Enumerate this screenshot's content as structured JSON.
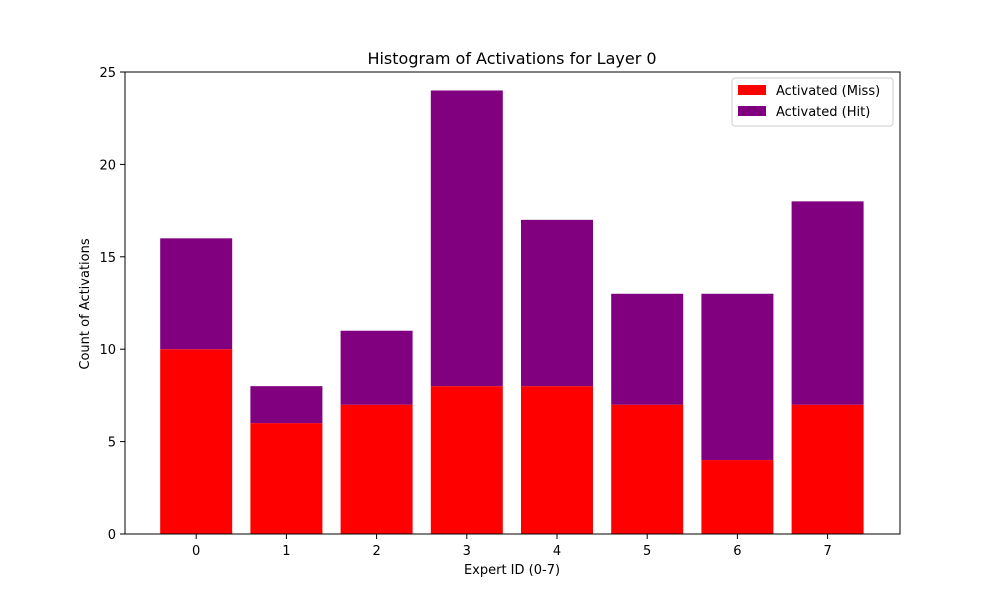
{
  "chart_data": {
    "type": "bar",
    "stacked": true,
    "title": "Histogram of Activations for Layer 0",
    "xlabel": "Expert ID (0-7)",
    "ylabel": "Count of Activations",
    "categories": [
      "0",
      "1",
      "2",
      "3",
      "4",
      "5",
      "6",
      "7"
    ],
    "series": [
      {
        "name": "Activated (Miss)",
        "color": "#ff0000",
        "values": [
          10,
          6,
          7,
          8,
          8,
          7,
          4,
          7
        ]
      },
      {
        "name": "Activated (Hit)",
        "color": "#800080",
        "values": [
          6,
          2,
          4,
          16,
          9,
          6,
          9,
          11
        ]
      }
    ],
    "ylim": [
      0,
      25
    ],
    "yticks": [
      0,
      5,
      10,
      15,
      20,
      25
    ],
    "grid": false,
    "legend_position": "top-right"
  }
}
